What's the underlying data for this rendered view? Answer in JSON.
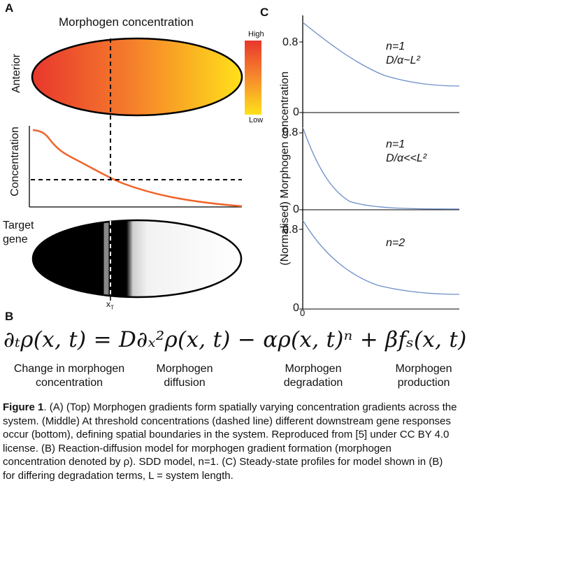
{
  "panelA": {
    "letter": "A",
    "title": "Morphogen concentration",
    "anterior_label": "Anterior",
    "scale_high": "High",
    "scale_low": "Low",
    "concentration_label": "Concentration",
    "target_gene_label_1": "Target",
    "target_gene_label_2": "gene",
    "threshold_label": "x",
    "threshold_sub": "T",
    "colors": {
      "high": "#e8372d",
      "low": "#ffe11a",
      "curve": "#f0642a"
    }
  },
  "panelB": {
    "letter": "B",
    "equation": "∂ₜρ(x, t) = D∂ₓ²ρ(x, t) − αρ(x, t)ⁿ + βfₛ(x, t)",
    "terms": [
      {
        "line1": "Change in morphogen",
        "line2": "concentration"
      },
      {
        "line1": "Morphogen",
        "line2": "diffusion"
      },
      {
        "line1": "Morphogen",
        "line2": "degradation"
      },
      {
        "line1": "Morphogen",
        "line2": "production"
      }
    ]
  },
  "panelC": {
    "letter": "C",
    "ylabel": "(Normalised) Morphogen concentration",
    "tick_08": "0.8",
    "tick_0": "0",
    "x_tick_0": "0",
    "subplots": [
      {
        "line1": "n=1",
        "line2": "D/α~L²"
      },
      {
        "line1": "n=1",
        "line2": "D/α<<L²"
      },
      {
        "line1": "n=2",
        "line2": ""
      }
    ],
    "curve_color": "#6d8fc9"
  },
  "caption": {
    "figure_label": "Figure 1",
    "text": ". (A) (Top) Morphogen gradients form spatially varying concentration gradients across the system. (Middle) At threshold concentrations (dashed line) different downstream gene responses occur (bottom), defining spatial boundaries in the system. Reproduced from [5] under CC BY 4.0 license. (B) Reaction-diffusion model for morphogen gradient formation (morphogen concentration denoted by ρ). SDD model, n=1. (C) Steady-state profiles for model shown in (B) for differing degradation terms, L = system length."
  }
}
